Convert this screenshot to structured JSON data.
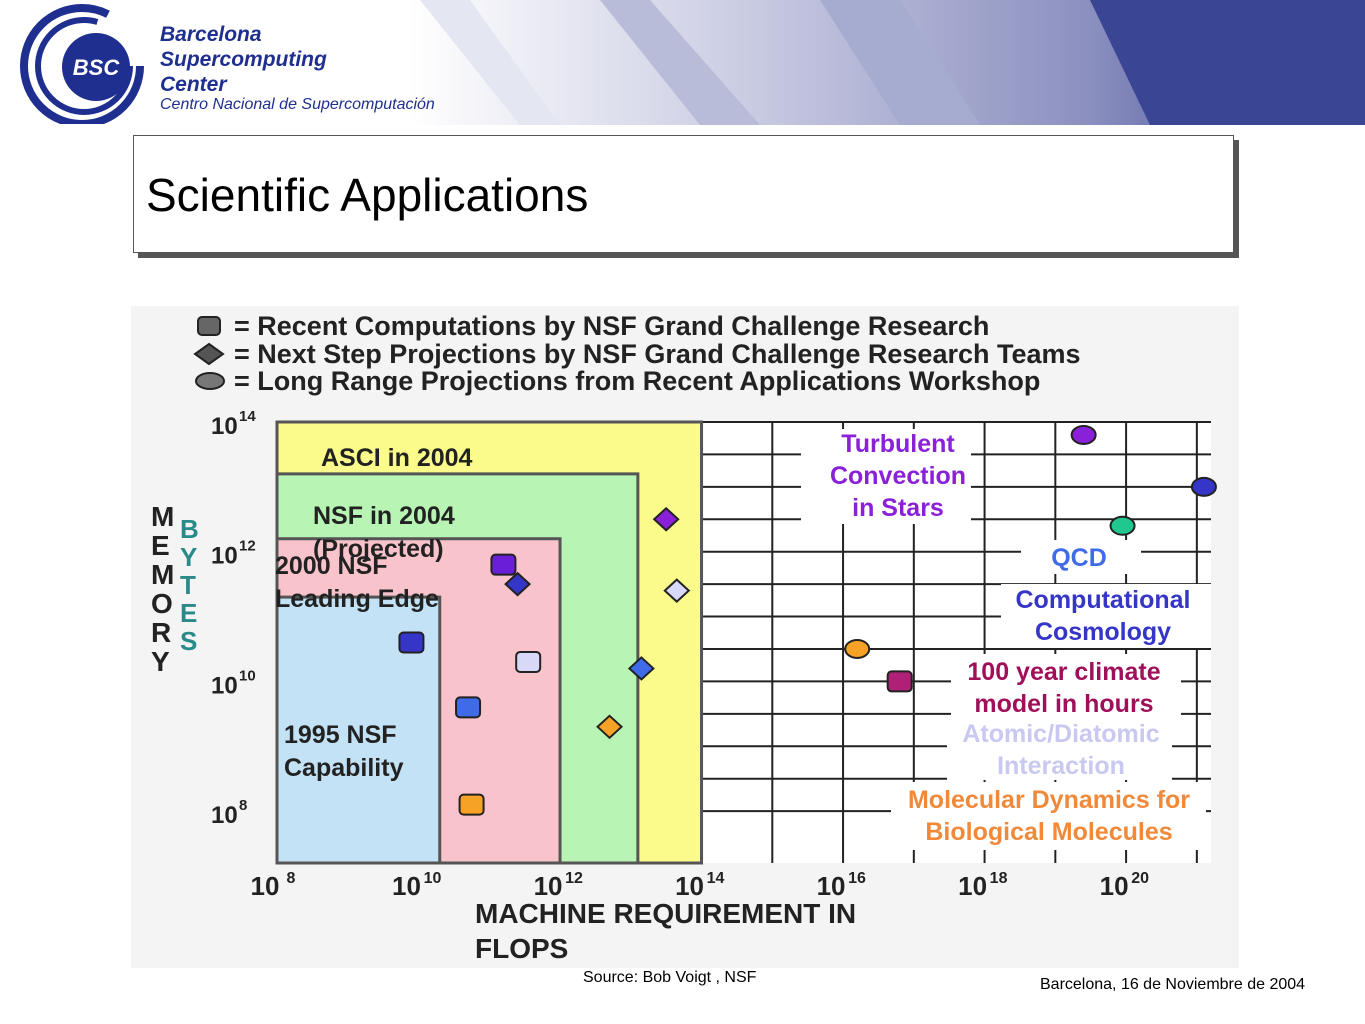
{
  "header": {
    "logo_text": "BSC",
    "org_lines": [
      "Barcelona",
      "Supercomputing",
      "Center"
    ],
    "org_subtitle": "Centro Nacional de Supercomputación"
  },
  "slide": {
    "title": "Scientific Applications",
    "source": "Source: Bob Voigt , NSF",
    "footer_date": "Barcelona, 16 de Noviembre de 2004"
  },
  "chart_data": {
    "type": "scatter",
    "legend": [
      {
        "marker": "square",
        "text": "= Recent Computations by NSF Grand Challenge Research"
      },
      {
        "marker": "diamond",
        "text": "= Next Step Projections by NSF Grand Challenge Research Teams"
      },
      {
        "marker": "ellipse",
        "text": "= Long Range Projections from Recent Applications Workshop"
      }
    ],
    "xlabel": [
      "MACHINE REQUIREMENT IN",
      "FLOPS"
    ],
    "ylabel_left": "MEMORY",
    "ylabel_right": "BYTES",
    "x_log_range": [
      8,
      21.2
    ],
    "y_log_range": [
      7.2,
      14
    ],
    "x_ticks": [
      8,
      10,
      12,
      14,
      16,
      18,
      20
    ],
    "y_ticks": [
      8,
      10,
      12,
      14
    ],
    "regions": [
      {
        "label": [
          "ASCI in 2004"
        ],
        "x_max": 14,
        "y_max": 14,
        "color": "#fbfb8c"
      },
      {
        "label": [
          "NSF in 2004",
          "(Projected)"
        ],
        "x_max": 13.1,
        "y_max": 13.2,
        "color": "#b8f5b5"
      },
      {
        "label": [
          "2000 NSF",
          "Leading Edge"
        ],
        "x_max": 12,
        "y_max": 12.2,
        "color": "#f9c3cc"
      },
      {
        "label": [
          "1995 NSF",
          "Capability"
        ],
        "x_max": 10.3,
        "y_max": 11.3,
        "color": "#c3e2f5"
      }
    ],
    "points": [
      {
        "shape": "square",
        "x": 9.9,
        "y": 10.6,
        "color": "#3535c8"
      },
      {
        "shape": "square",
        "x": 10.7,
        "y": 9.6,
        "color": "#3f6ae8"
      },
      {
        "shape": "square",
        "x": 10.75,
        "y": 8.1,
        "color": "#f5a226"
      },
      {
        "shape": "square",
        "x": 11.2,
        "y": 11.8,
        "color": "#6a1ed8"
      },
      {
        "shape": "square",
        "x": 11.55,
        "y": 10.3,
        "color": "#d8d8f8"
      },
      {
        "shape": "square",
        "x": 16.8,
        "y": 10,
        "color": "#b02077"
      },
      {
        "shape": "diamond",
        "x": 11.4,
        "y": 11.5,
        "color": "#3535c8"
      },
      {
        "shape": "diamond",
        "x": 12.7,
        "y": 9.3,
        "color": "#f5a226"
      },
      {
        "shape": "diamond",
        "x": 13.15,
        "y": 10.2,
        "color": "#3f6ae8"
      },
      {
        "shape": "diamond",
        "x": 13.5,
        "y": 12.5,
        "color": "#8a20d8"
      },
      {
        "shape": "diamond",
        "x": 13.65,
        "y": 11.4,
        "color": "#d8d8f8"
      },
      {
        "shape": "ellipse",
        "x": 16.2,
        "y": 10.5,
        "color": "#f5a226"
      },
      {
        "shape": "ellipse",
        "x": 19.4,
        "y": 13.8,
        "color": "#8a20d8"
      },
      {
        "shape": "ellipse",
        "x": 19.95,
        "y": 12.4,
        "color": "#20c890"
      },
      {
        "shape": "ellipse",
        "x": 21.1,
        "y": 13,
        "color": "#3535c8"
      }
    ],
    "annotations": [
      {
        "lines": [
          "Turbulent",
          "Convection",
          "in Stars"
        ],
        "color": "#8a20d8"
      },
      {
        "lines": [
          "QCD"
        ],
        "color": "#3f6ae8"
      },
      {
        "lines": [
          "Computational",
          "Cosmology"
        ],
        "color": "#3535c8"
      },
      {
        "lines": [
          "100 year climate",
          "model in hours"
        ],
        "color": "#a0105a"
      },
      {
        "lines": [
          "Atomic/Diatomic",
          "Interaction"
        ],
        "color": "#c8c8f0"
      },
      {
        "lines": [
          "Molecular Dynamics for",
          "Biological Molecules"
        ],
        "color": "#f08a3a"
      }
    ]
  }
}
